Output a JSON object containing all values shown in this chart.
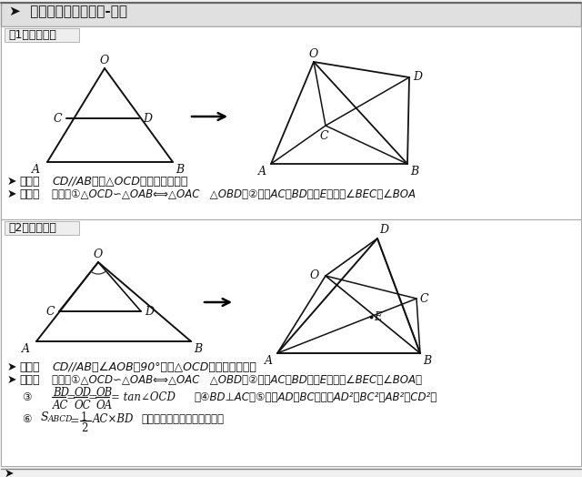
{
  "title": "➤  模型二：手拉手模型-相似",
  "bg_color": "#f0f0f0",
  "white": "#ffffff",
  "black": "#111111",
  "gray_title_bg": "#d8d8d8",
  "section_label_bg": "#e8e8e8",
  "s1_title": "（1）一般情况",
  "s2_title": "（2）特殊情况",
  "cond1_label": "条件：",
  "cond1_text": "CD//AB，将△OCD旋转至右图位置",
  "concl1_label": "结论：",
  "concl1_text": "右图中①△OCD∽△OAB⟺△OAC   △OBD；②延长AC交BD于点E，必有∠BEC＝∠BOA",
  "cond2_label": "条件：",
  "cond2_text": "CD//AB，∠AOB＝90°，将△OCD旋转至右图位置",
  "concl2_label": "结论：",
  "concl2_text": "右图中①△OCD∽△OAB⟺△OAC   △OBD；②延长AC交BD于点E，必有∠BEC＝∠BOA；",
  "line3_num": "BD    OD    OB",
  "line3_den": "AC    OC    OA",
  "line3_eq": "= tan∠OCD",
  "line3_rest": "；④BD⊥AC；⑤连接AD，BC，必有AD²＋BC²＝AB²＋CD²；",
  "line3_prefix": "③",
  "s_formula": "S",
  "s_sub": "ABCD",
  "s_eq": "＝",
  "s_num": "1",
  "s_den": "2",
  "s_rest": "AC×BD",
  "s_note": "（对角线互相垂直的四边形）",
  "circ6": "⑥",
  "footer": "➤"
}
